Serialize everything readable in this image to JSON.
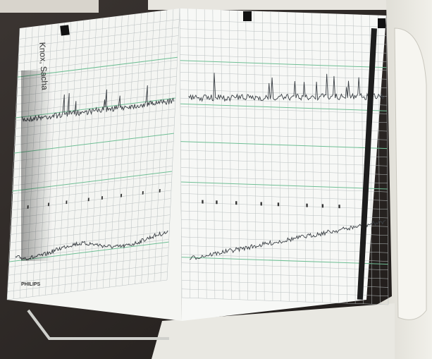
{
  "strip": {
    "patient_name": "Knox, Sacha",
    "brand": "PHILIPS"
  }
}
